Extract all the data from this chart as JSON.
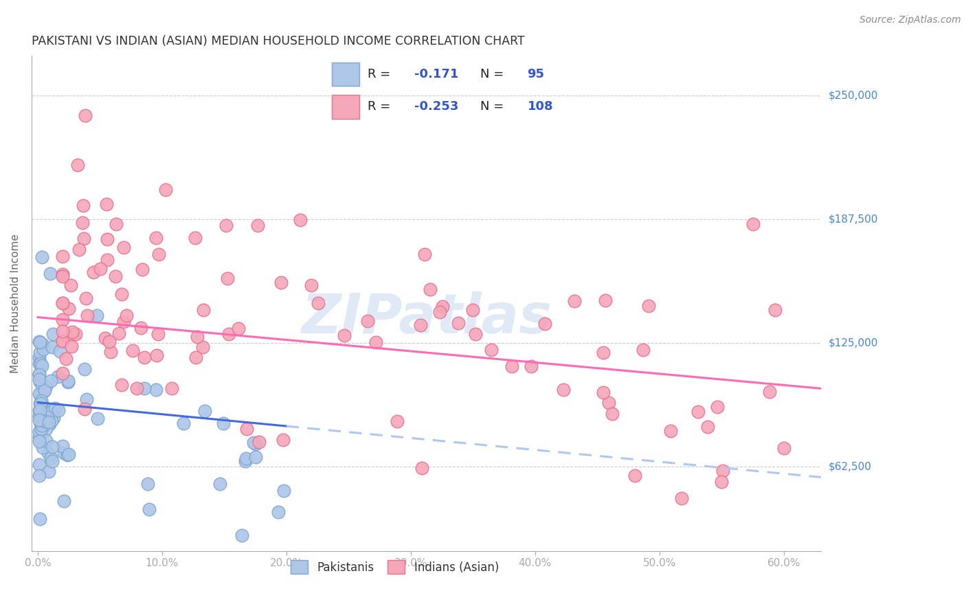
{
  "title": "PAKISTANI VS INDIAN (ASIAN) MEDIAN HOUSEHOLD INCOME CORRELATION CHART",
  "source": "Source: ZipAtlas.com",
  "xlabel_ticks": [
    "0.0%",
    "10.0%",
    "20.0%",
    "30.0%",
    "40.0%",
    "50.0%",
    "60.0%"
  ],
  "xlabel_vals": [
    0.0,
    0.1,
    0.2,
    0.3,
    0.4,
    0.5,
    0.6
  ],
  "ylabel": "Median Household Income",
  "ytick_labels": [
    "$62,500",
    "$125,000",
    "$187,500",
    "$250,000"
  ],
  "ytick_vals": [
    62500,
    125000,
    187500,
    250000
  ],
  "xlim": [
    -0.005,
    0.63
  ],
  "ylim": [
    20000,
    270000
  ],
  "watermark": "ZIPatlas",
  "pakistani_color": "#aec6e8",
  "pakistani_edge": "#7ba7d0",
  "indian_color": "#f4a7b9",
  "indian_edge": "#e87090",
  "trendline_pakistani_color": "#4169e1",
  "trendline_indian_color": "#ff69b4",
  "trendline_pakistani_ext_color": "#b0c8f0",
  "background_color": "#ffffff",
  "grid_color": "#cccccc",
  "pakistani_R": -0.171,
  "pakistani_N": 95,
  "indian_R": -0.253,
  "indian_N": 108,
  "pak_trend_x_start": 0.0,
  "pak_trend_x_solid_end": 0.2,
  "pak_trend_x_dash_end": 0.63,
  "pak_trend_y_at_0": 95000,
  "pak_trend_y_at_020": 83000,
  "ind_trend_x_start": 0.0,
  "ind_trend_x_end": 0.63,
  "ind_trend_y_at_0": 138000,
  "ind_trend_y_at_063": 102000
}
